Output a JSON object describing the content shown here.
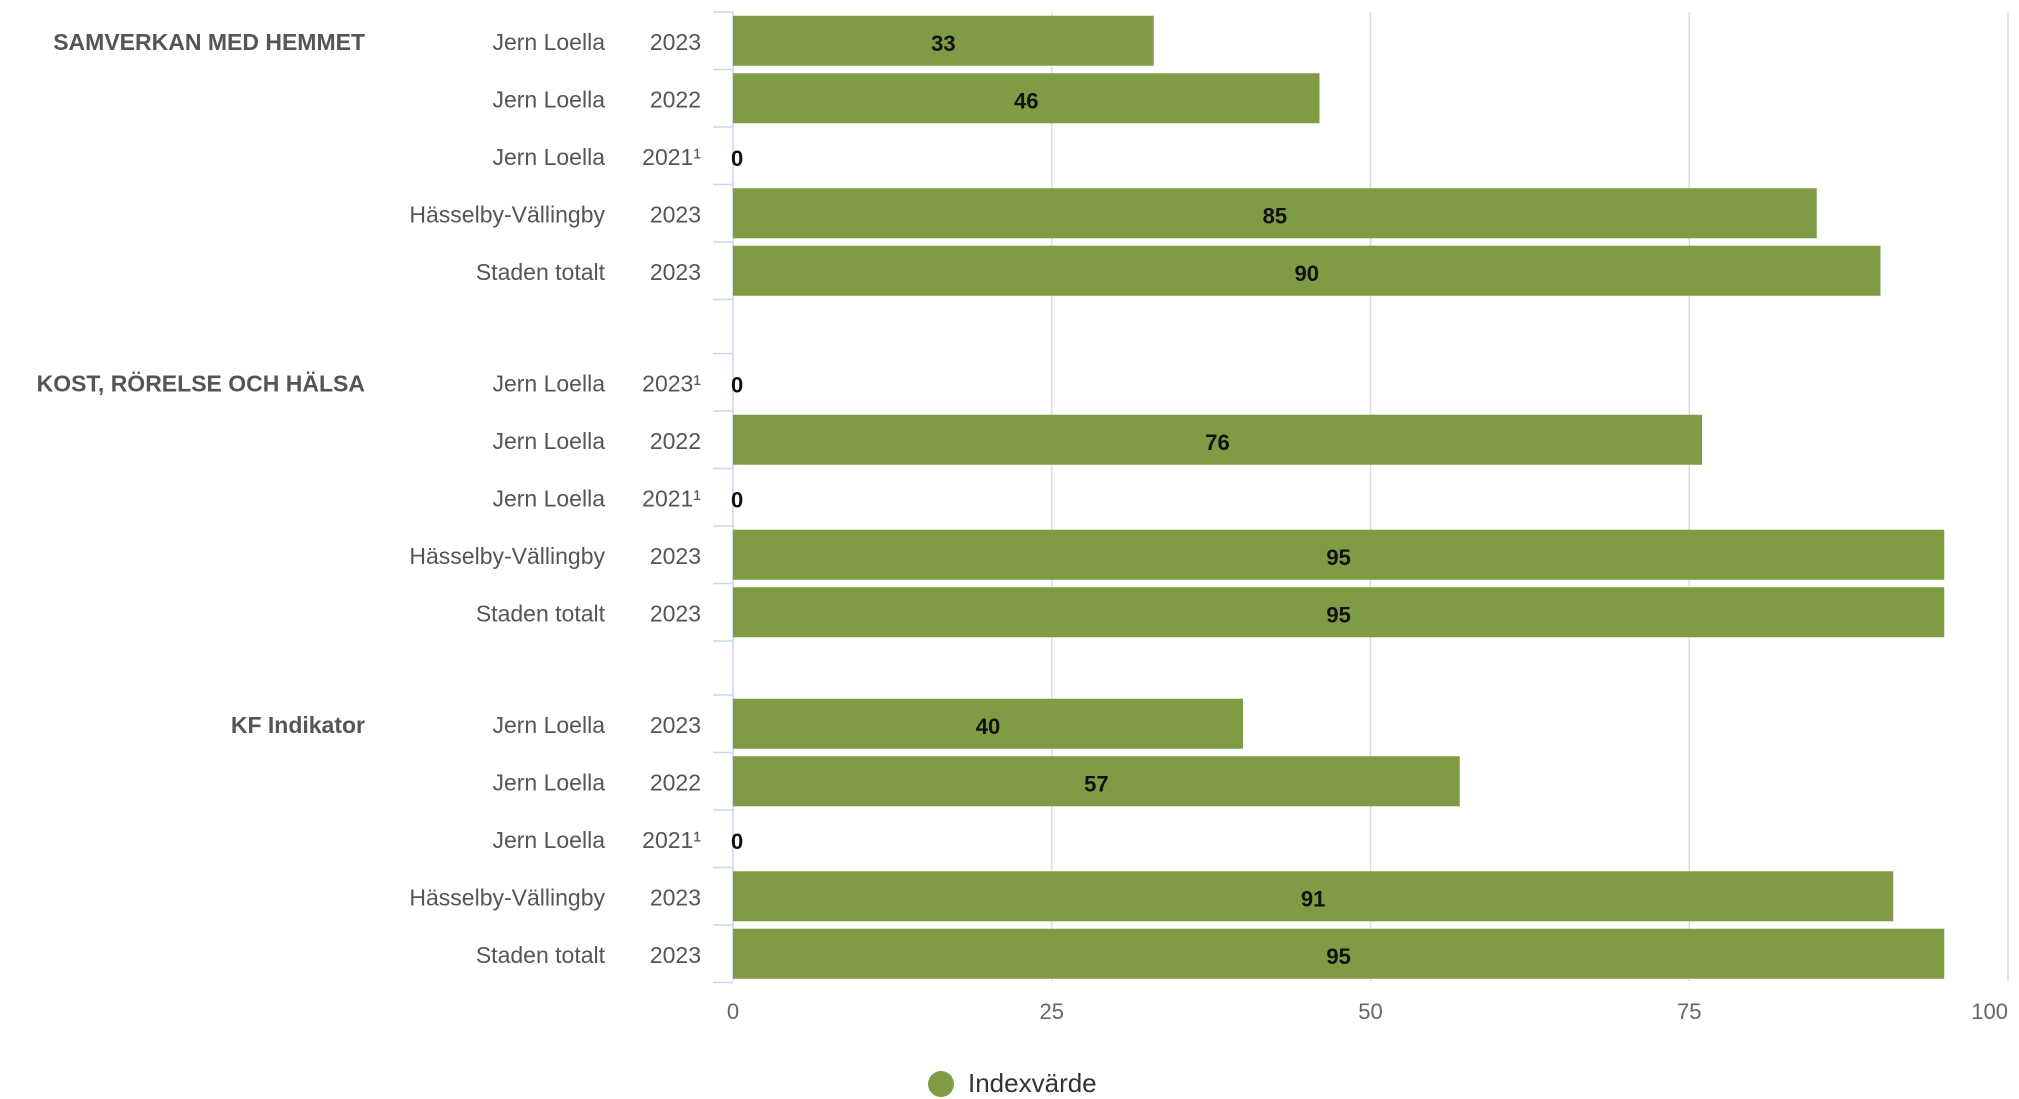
{
  "chart_data": {
    "type": "bar",
    "orientation": "horizontal",
    "xlim": [
      0,
      100
    ],
    "x_ticks": [
      "0",
      "25",
      "50",
      "75",
      "100"
    ],
    "grid": true,
    "bar_color": "#7f9c45",
    "legend": {
      "label": "Indexvärde",
      "position": "bottom"
    },
    "groups": [
      {
        "name": "SAMVERKAN MED HEMMET",
        "rows": [
          {
            "unit": "Jern Loella",
            "year": "2023",
            "value": 33,
            "label": "33"
          },
          {
            "unit": "Jern Loella",
            "year": "2022",
            "value": 46,
            "label": "46"
          },
          {
            "unit": "Jern Loella",
            "year": "2021¹",
            "value": 0,
            "label": "0"
          },
          {
            "unit": "Hässelby-Vällingby",
            "year": "2023",
            "value": 85,
            "label": "85"
          },
          {
            "unit": "Staden totalt",
            "year": "2023",
            "value": 90,
            "label": "90"
          }
        ]
      },
      {
        "name": "KOST, RÖRELSE OCH HÄLSA",
        "rows": [
          {
            "unit": "Jern Loella",
            "year": "2023¹",
            "value": 0,
            "label": "0"
          },
          {
            "unit": "Jern Loella",
            "year": "2022",
            "value": 76,
            "label": "76"
          },
          {
            "unit": "Jern Loella",
            "year": "2021¹",
            "value": 0,
            "label": "0"
          },
          {
            "unit": "Hässelby-Vällingby",
            "year": "2023",
            "value": 95,
            "label": "95"
          },
          {
            "unit": "Staden totalt",
            "year": "2023",
            "value": 95,
            "label": "95"
          }
        ]
      },
      {
        "name": "KF Indikator",
        "rows": [
          {
            "unit": "Jern Loella",
            "year": "2023",
            "value": 40,
            "label": "40"
          },
          {
            "unit": "Jern Loella",
            "year": "2022",
            "value": 57,
            "label": "57"
          },
          {
            "unit": "Jern Loella",
            "year": "2021¹",
            "value": 0,
            "label": "0"
          },
          {
            "unit": "Hässelby-Vällingby",
            "year": "2023",
            "value": 91,
            "label": "91"
          },
          {
            "unit": "Staden totalt",
            "year": "2023",
            "value": 95,
            "label": "95"
          }
        ]
      }
    ]
  }
}
